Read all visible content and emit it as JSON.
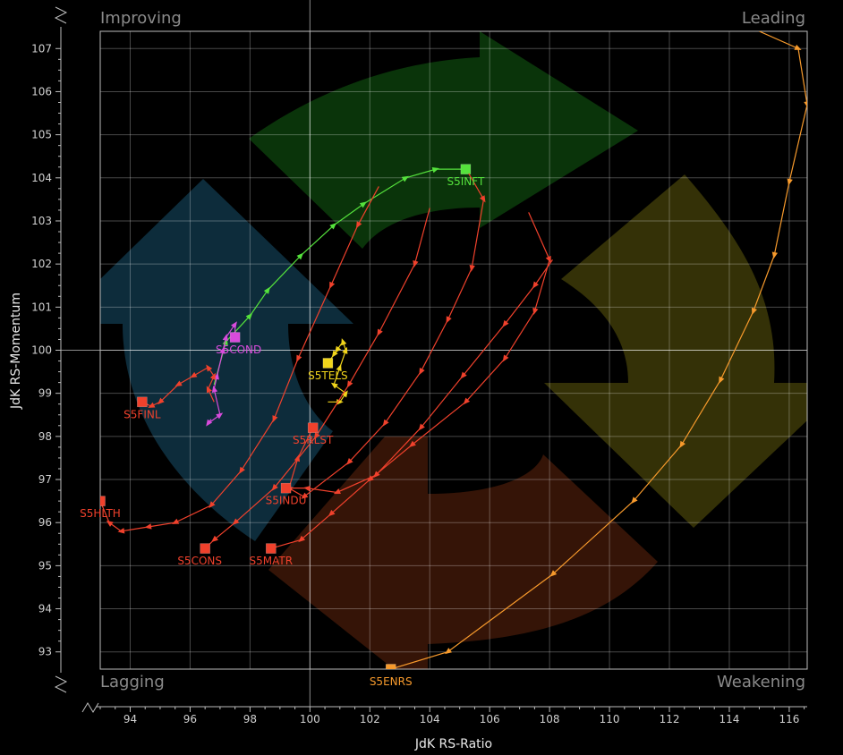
{
  "chart_data": {
    "type": "scatter",
    "subtype": "relative-rotation-graph",
    "xlabel": "JdK RS-Ratio",
    "ylabel": "JdK RS-Momentum",
    "xlim": [
      93,
      116.6
    ],
    "ylim": [
      92.6,
      107.4
    ],
    "x_ticks": [
      94,
      96,
      98,
      100,
      102,
      104,
      106,
      108,
      110,
      112,
      114,
      116
    ],
    "y_ticks": [
      93,
      94,
      95,
      96,
      97,
      98,
      99,
      100,
      101,
      102,
      103,
      104,
      105,
      106,
      107
    ],
    "grid": true,
    "quadrants": {
      "top_left": "Improving",
      "top_right": "Leading",
      "bottom_left": "Lagging",
      "bottom_right": "Weakening"
    },
    "background_colors": {
      "improving": "#0e3141",
      "leading": "#0b3a0b",
      "weakening": "#3a3608",
      "lagging": "#3b1608"
    },
    "series": [
      {
        "name": "S5INFT",
        "color": "#55e23c",
        "points": [
          [
            96.8,
            99.2
          ],
          [
            97.2,
            100.2
          ],
          [
            98.0,
            100.8
          ],
          [
            98.6,
            101.4
          ],
          [
            99.7,
            102.2
          ],
          [
            100.8,
            102.9
          ],
          [
            101.8,
            103.4
          ],
          [
            103.2,
            104.0
          ],
          [
            104.2,
            104.2
          ],
          [
            105.2,
            104.2
          ]
        ]
      },
      {
        "name": "S5COND",
        "color": "#d84bdc",
        "points": [
          [
            96.7,
            98.4
          ],
          [
            96.6,
            98.3
          ],
          [
            97.0,
            98.5
          ],
          [
            96.8,
            99.1
          ],
          [
            96.9,
            99.4
          ],
          [
            97.1,
            100.0
          ],
          [
            97.2,
            100.3
          ],
          [
            97.5,
            100.6
          ],
          [
            97.5,
            100.3
          ]
        ]
      },
      {
        "name": "S5TELS",
        "color": "#f1d51b",
        "points": [
          [
            100.6,
            98.8
          ],
          [
            101.0,
            98.8
          ],
          [
            101.2,
            99.0
          ],
          [
            100.8,
            99.2
          ],
          [
            101.0,
            99.6
          ],
          [
            101.2,
            100.0
          ],
          [
            101.1,
            100.2
          ],
          [
            100.9,
            100.0
          ],
          [
            100.8,
            99.9
          ],
          [
            100.6,
            99.7
          ]
        ]
      },
      {
        "name": "S5FINL",
        "color": "#f0412c",
        "points": [
          [
            96.8,
            98.8
          ],
          [
            96.6,
            99.1
          ],
          [
            96.8,
            99.4
          ],
          [
            96.6,
            99.6
          ],
          [
            96.1,
            99.4
          ],
          [
            95.6,
            99.2
          ],
          [
            95.0,
            98.8
          ],
          [
            94.7,
            98.7
          ],
          [
            94.4,
            98.8
          ]
        ]
      },
      {
        "name": "S5HLTH",
        "color": "#f0412c",
        "points": [
          [
            102.3,
            103.8
          ],
          [
            101.6,
            102.9
          ],
          [
            100.7,
            101.5
          ],
          [
            99.6,
            99.8
          ],
          [
            98.8,
            98.4
          ],
          [
            97.7,
            97.2
          ],
          [
            96.7,
            96.4
          ],
          [
            95.5,
            96.0
          ],
          [
            94.6,
            95.9
          ],
          [
            93.7,
            95.8
          ],
          [
            93.3,
            96.0
          ],
          [
            93.0,
            96.5
          ]
        ]
      },
      {
        "name": "S5CONS",
        "color": "#f0412c",
        "points": [
          [
            104.0,
            103.3
          ],
          [
            103.5,
            102.0
          ],
          [
            102.3,
            100.4
          ],
          [
            101.3,
            99.2
          ],
          [
            100.2,
            98.0
          ],
          [
            98.8,
            96.8
          ],
          [
            97.5,
            96.0
          ],
          [
            96.8,
            95.6
          ],
          [
            96.5,
            95.4
          ]
        ]
      },
      {
        "name": "S5RLST",
        "color": "#f0412c",
        "points": [
          [
            105.3,
            104.1
          ],
          [
            105.8,
            103.5
          ],
          [
            105.4,
            101.9
          ],
          [
            104.6,
            100.7
          ],
          [
            103.7,
            99.5
          ],
          [
            102.5,
            98.3
          ],
          [
            101.3,
            97.4
          ],
          [
            99.8,
            96.6
          ],
          [
            99.3,
            96.8
          ],
          [
            99.6,
            97.5
          ],
          [
            100.1,
            98.2
          ]
        ]
      },
      {
        "name": "S5INDU",
        "color": "#f0412c",
        "points": [
          [
            108.1,
            102.1
          ],
          [
            107.5,
            101.5
          ],
          [
            106.5,
            100.6
          ],
          [
            105.1,
            99.4
          ],
          [
            103.7,
            98.2
          ],
          [
            102.2,
            97.1
          ],
          [
            100.9,
            96.7
          ],
          [
            99.9,
            96.8
          ],
          [
            99.2,
            96.8
          ]
        ]
      },
      {
        "name": "S5MATR",
        "color": "#f0412c",
        "points": [
          [
            107.3,
            103.2
          ],
          [
            108.0,
            102.1
          ],
          [
            107.5,
            100.9
          ],
          [
            106.5,
            99.8
          ],
          [
            105.2,
            98.8
          ],
          [
            103.4,
            97.8
          ],
          [
            102.0,
            97.0
          ],
          [
            100.7,
            96.2
          ],
          [
            99.7,
            95.6
          ],
          [
            98.7,
            95.4
          ]
        ]
      },
      {
        "name": "S5ENRS",
        "color": "#f79a2c",
        "points": [
          [
            115.0,
            107.4
          ],
          [
            116.3,
            107.0
          ],
          [
            116.6,
            105.7
          ],
          [
            116.0,
            103.9
          ],
          [
            115.5,
            102.2
          ],
          [
            114.8,
            100.9
          ],
          [
            113.7,
            99.3
          ],
          [
            112.4,
            97.8
          ],
          [
            110.8,
            96.5
          ],
          [
            108.1,
            94.8
          ],
          [
            104.6,
            93.0
          ],
          [
            102.7,
            92.6
          ]
        ]
      }
    ]
  }
}
